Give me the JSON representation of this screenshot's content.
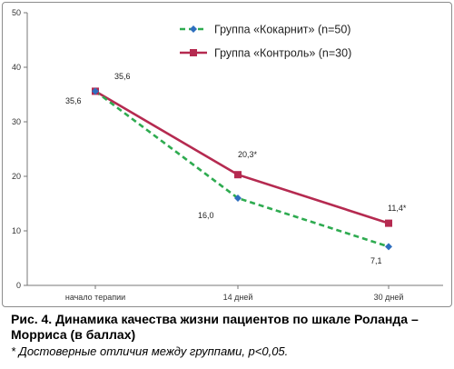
{
  "figure": {
    "caption_title": "Рис. 4. Динамика качества жизни пациентов по шкале Роланда – Морриса (в баллах)",
    "caption_note": "* Достоверные отличия между группами, p<0,05."
  },
  "chart_data": {
    "type": "line",
    "categories": [
      "начало терапии",
      "14 дней",
      "30 дней"
    ],
    "ylim": [
      0,
      50
    ],
    "yticks": [
      0,
      10,
      20,
      30,
      40,
      50
    ],
    "grid": false,
    "legend_position": "top-right",
    "series": [
      {
        "name": "Группа «Кокарнит» (n=50)",
        "values": [
          35.6,
          16.0,
          7.1
        ],
        "labels": [
          "35,6",
          "16,0",
          "7,1"
        ],
        "color": "#2eab50",
        "style": "dashed",
        "marker": "diamond",
        "marker_color": "#2f6fbf"
      },
      {
        "name": "Группа «Контроль» (n=30)",
        "values": [
          35.6,
          20.3,
          11.4
        ],
        "labels": [
          "35,6",
          "20,3*",
          "11,4*"
        ],
        "color": "#b52a50",
        "style": "solid",
        "marker": "square",
        "marker_color": "#b52a50"
      }
    ]
  }
}
